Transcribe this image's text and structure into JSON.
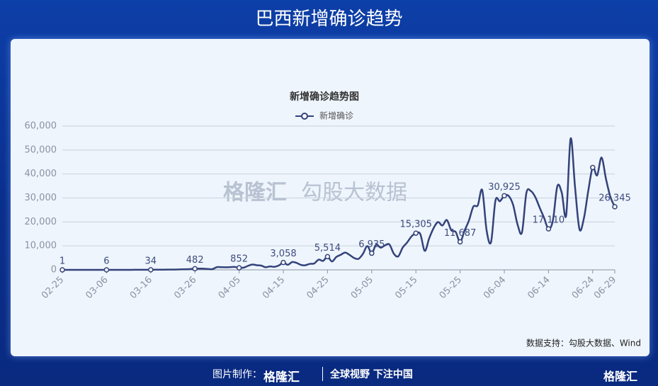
{
  "header": {
    "title": "巴西新增确诊趋势"
  },
  "chart_data": {
    "type": "line",
    "title": "新增确诊趋势图",
    "legend": "新增确诊",
    "color": "#34427a",
    "categories": [
      "02-25",
      null,
      null,
      null,
      null,
      null,
      null,
      null,
      null,
      null,
      "03-06",
      null,
      null,
      null,
      null,
      null,
      null,
      null,
      null,
      null,
      "03-16",
      null,
      null,
      null,
      null,
      null,
      null,
      null,
      null,
      null,
      "03-26",
      null,
      null,
      null,
      null,
      null,
      null,
      null,
      null,
      null,
      "04-05",
      null,
      null,
      null,
      null,
      null,
      null,
      null,
      null,
      null,
      "04-15",
      null,
      null,
      null,
      null,
      null,
      null,
      null,
      null,
      null,
      "04-25",
      null,
      null,
      null,
      null,
      null,
      null,
      null,
      null,
      null,
      "05-05",
      null,
      null,
      null,
      null,
      null,
      null,
      null,
      null,
      null,
      "05-15",
      null,
      null,
      null,
      null,
      null,
      null,
      null,
      null,
      null,
      "05-25",
      null,
      null,
      null,
      null,
      null,
      null,
      null,
      null,
      null,
      "06-04",
      null,
      null,
      null,
      null,
      null,
      null,
      null,
      null,
      null,
      "06-14",
      null,
      null,
      null,
      null,
      null,
      null,
      null,
      null,
      null,
      "06-24",
      null,
      null,
      null,
      null,
      "06-29"
    ],
    "values": [
      1,
      0,
      0,
      0,
      1,
      0,
      0,
      1,
      0,
      5,
      6,
      6,
      0,
      13,
      0,
      6,
      21,
      40,
      53,
      52,
      34,
      57,
      61,
      87,
      100,
      113,
      145,
      223,
      247,
      344,
      482,
      502,
      487,
      352,
      323,
      1138,
      1117,
      1076,
      1146,
      1222,
      852,
      926,
      1661,
      2210,
      1930,
      1781,
      1089,
      1442,
      1261,
      1832,
      3058,
      2105,
      3257,
      2917,
      2055,
      1927,
      2498,
      2678,
      4279,
      3735,
      5514,
      3503,
      5385,
      6276,
      7218,
      6209,
      4970,
      4588,
      6633,
      9888,
      6935,
      10503,
      9258,
      10222,
      10611,
      6760,
      5632,
      9258,
      11385,
      13944,
      15305,
      14919,
      7938,
      13140,
      17408,
      19951,
      18508,
      20803,
      16508,
      15813,
      11687,
      16324,
      20599,
      26417,
      26928,
      33274,
      16409,
      11598,
      28936,
      28633,
      30925,
      30830,
      27075,
      18921,
      15654,
      32091,
      32913,
      30412,
      25982,
      21704,
      17110,
      20647,
      34918,
      32188,
      22765,
      54771,
      34666,
      17000,
      21432,
      33000,
      42725,
      39436,
      46860,
      38000,
      30476,
      26345
    ],
    "value_labels": [
      "1",
      null,
      null,
      null,
      null,
      null,
      null,
      null,
      null,
      null,
      "6",
      null,
      null,
      null,
      null,
      null,
      null,
      null,
      null,
      null,
      "34",
      null,
      null,
      null,
      null,
      null,
      null,
      null,
      null,
      null,
      "482",
      null,
      null,
      null,
      null,
      null,
      null,
      null,
      null,
      null,
      "852",
      null,
      null,
      null,
      null,
      null,
      null,
      null,
      null,
      null,
      "3,058",
      null,
      null,
      null,
      null,
      null,
      null,
      null,
      null,
      null,
      "5,514",
      null,
      null,
      null,
      null,
      null,
      null,
      null,
      null,
      null,
      "6,935",
      null,
      null,
      null,
      null,
      null,
      null,
      null,
      null,
      null,
      "15,305",
      null,
      null,
      null,
      null,
      null,
      null,
      null,
      null,
      null,
      "11,687",
      null,
      null,
      null,
      null,
      null,
      null,
      null,
      null,
      null,
      "30,925",
      null,
      null,
      null,
      null,
      null,
      null,
      null,
      null,
      null,
      "17,110",
      null,
      null,
      null,
      null,
      null,
      null,
      null,
      null,
      null,
      null,
      null,
      null,
      null,
      null,
      "26,345"
    ],
    "ylim": [
      0,
      60000
    ],
    "yticks": [
      0,
      {
        "value": 10000,
        "label": "10,000"
      },
      {
        "value": 20000,
        "label": "20,000"
      },
      {
        "value": 30000,
        "label": "30,000"
      },
      {
        "value": 40000,
        "label": "40,000"
      },
      {
        "value": 50000,
        "label": "50,000"
      },
      {
        "value": 60000,
        "label": "60,000"
      }
    ],
    "grid": true,
    "source": "数据支持：勾股大数据、Wind"
  },
  "watermark": {
    "left": "格隆汇",
    "right": "勾股大数据"
  },
  "footer": {
    "made_by": "图片制作：",
    "brand": "格隆汇",
    "slogan": "全球视野 下注中国",
    "corner_logo": "格隆汇"
  }
}
